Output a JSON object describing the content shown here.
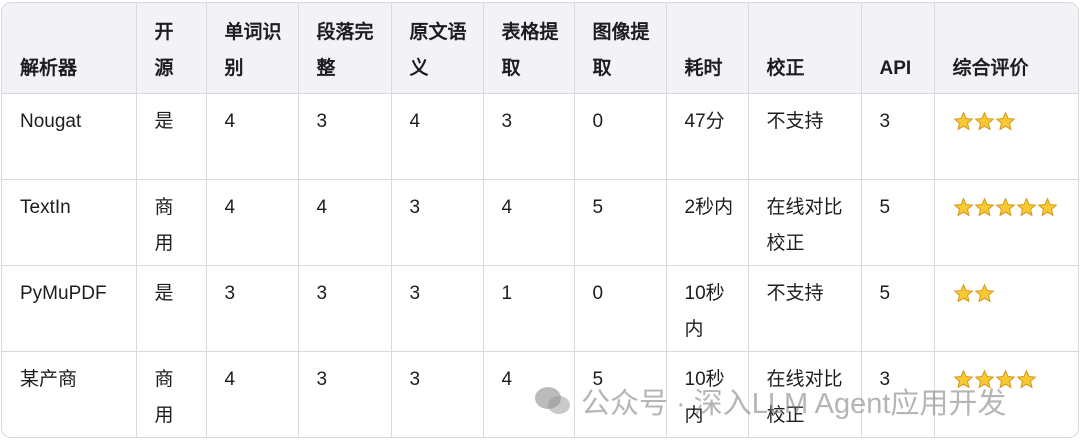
{
  "table": {
    "header": [
      "解析器",
      "开源",
      "单词识别",
      "段落完整",
      "原文语义",
      "表格提取",
      "图像提取",
      "耗时",
      "校正",
      "API",
      "综合评价"
    ],
    "rows": [
      [
        "Nougat",
        "是",
        4,
        3,
        4,
        3,
        0,
        "47分",
        "不支持",
        3,
        3
      ],
      [
        "TextIn",
        "商用",
        4,
        4,
        3,
        4,
        5,
        "2秒内",
        "在线对比校正",
        5,
        5
      ],
      [
        "PyMuPDF",
        "是",
        3,
        3,
        3,
        1,
        0,
        "10秒内",
        "不支持",
        5,
        2
      ],
      [
        "某产商",
        "商用",
        4,
        3,
        3,
        4,
        5,
        "10秒内",
        "在线对比校正",
        3,
        4
      ]
    ]
  },
  "watermark": "公众号 · 深入LLM Agent应用开发"
}
